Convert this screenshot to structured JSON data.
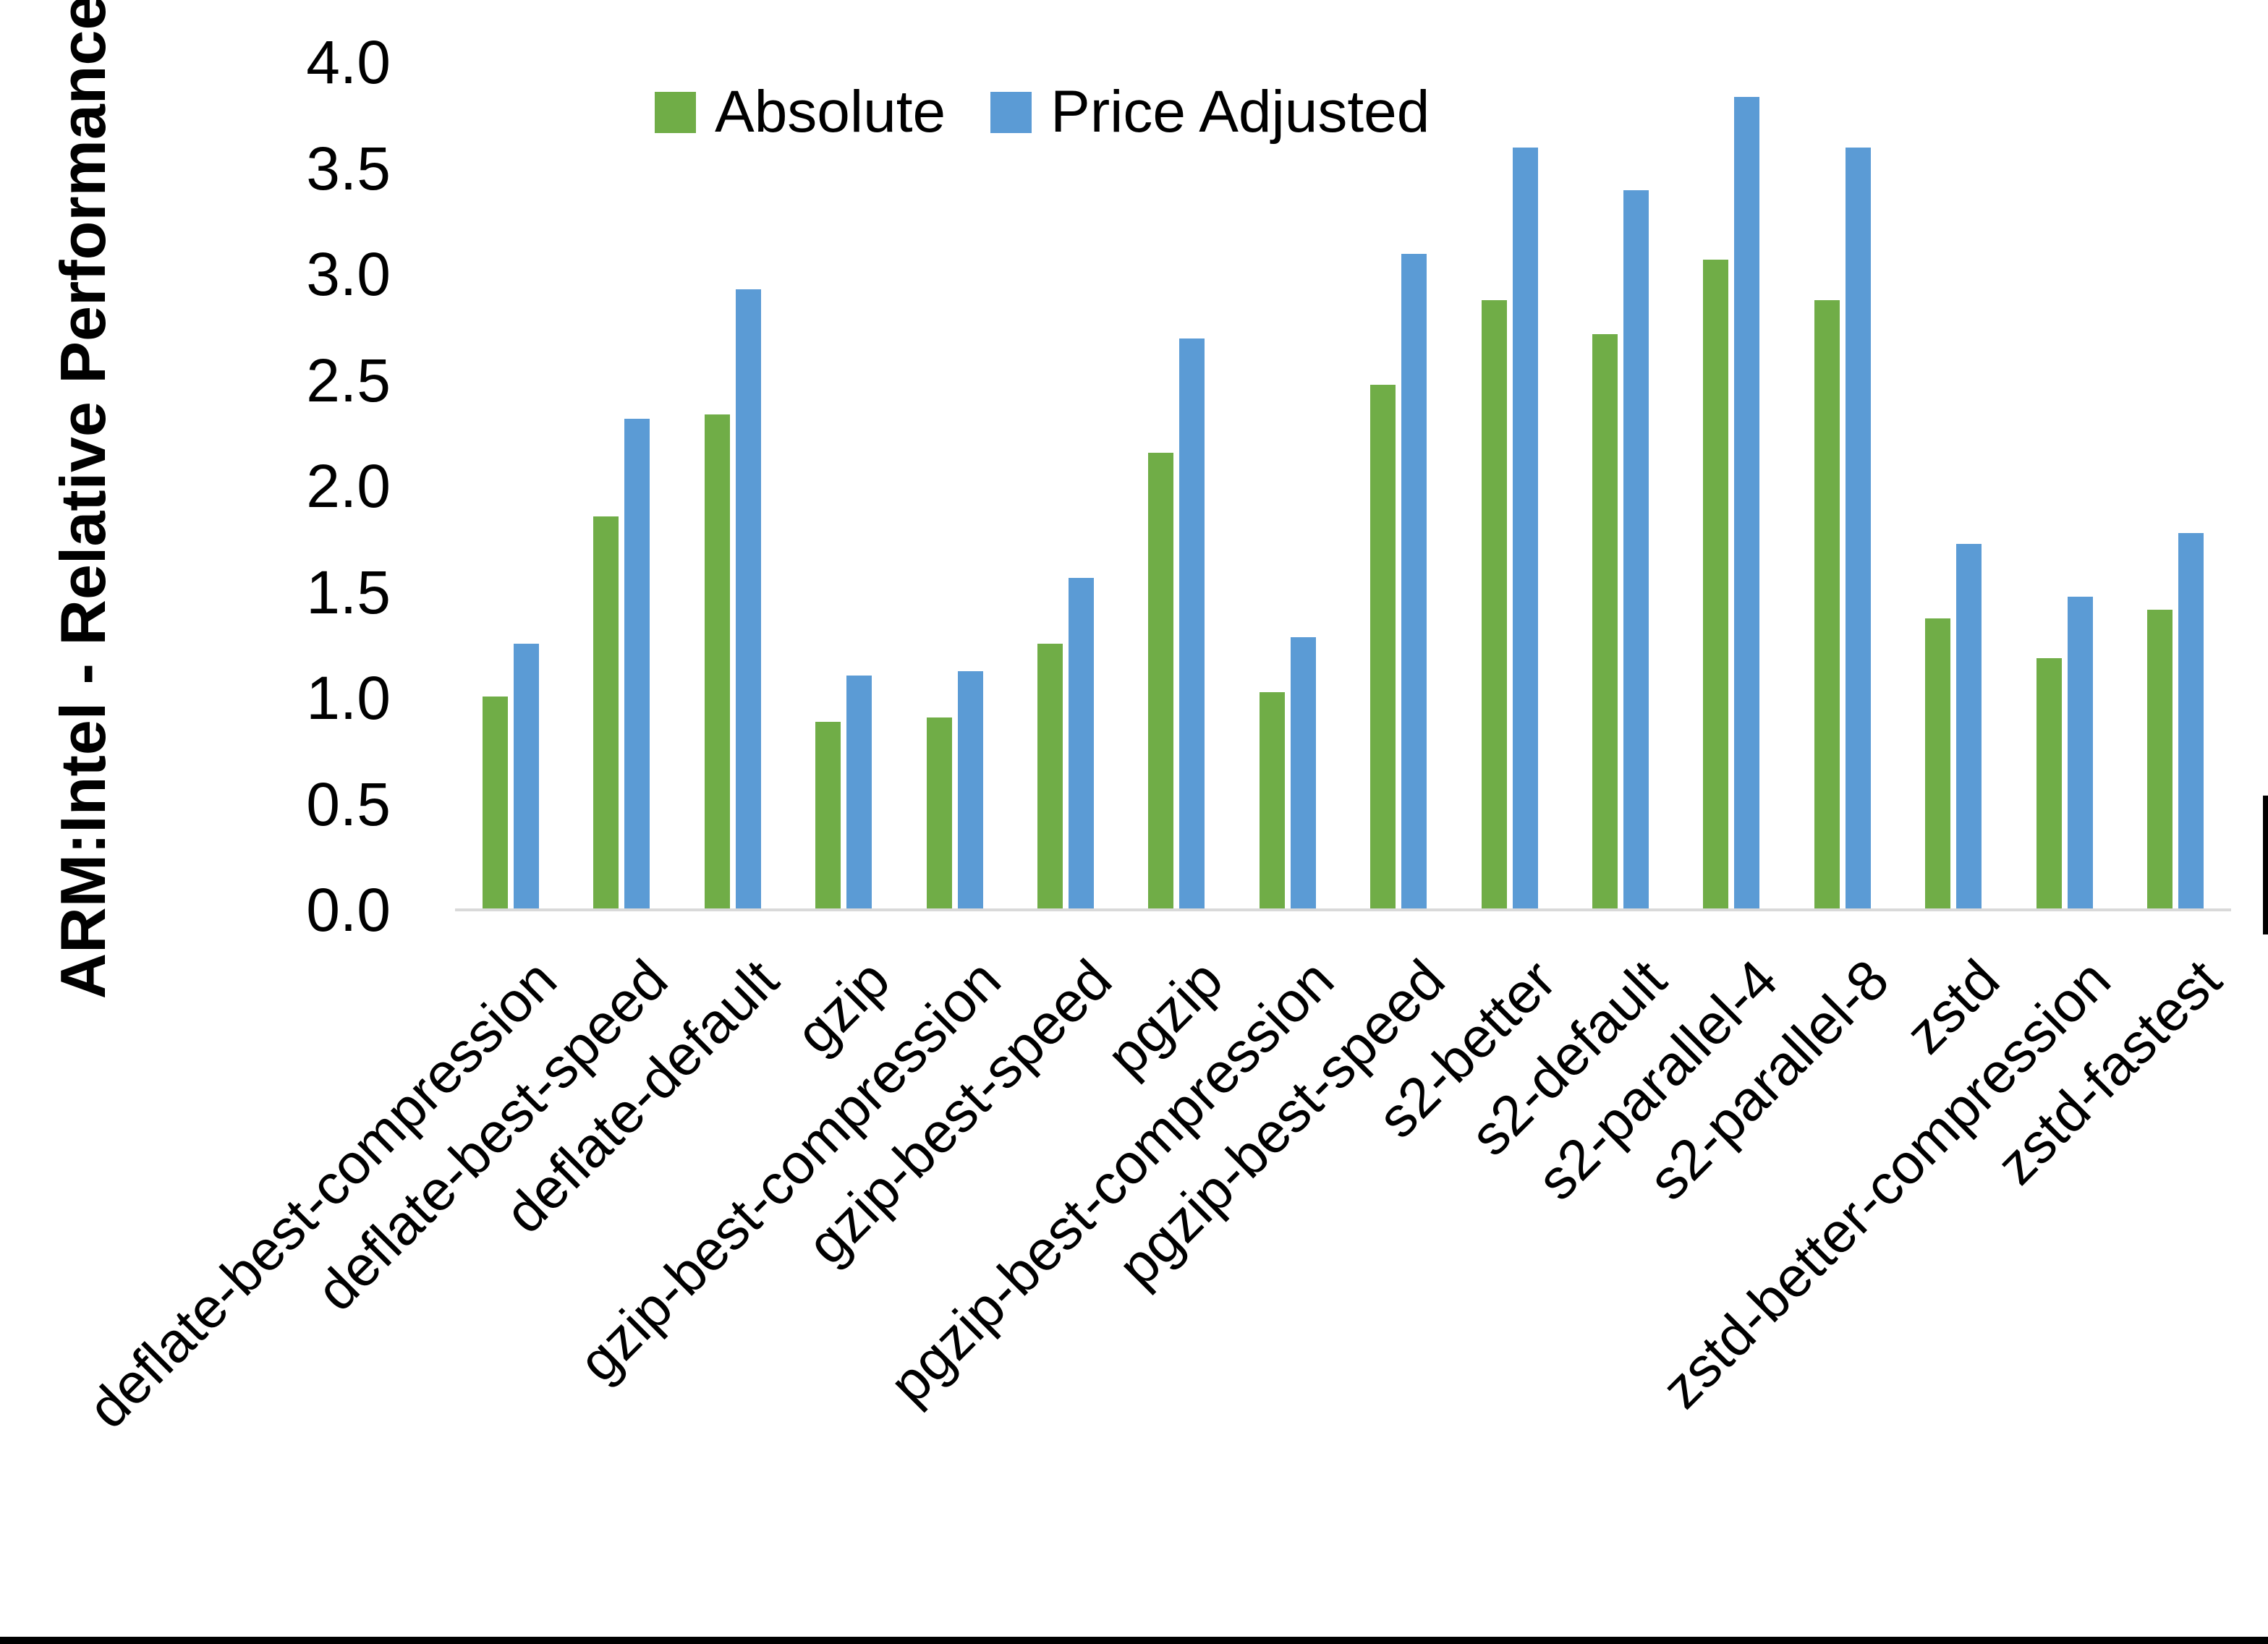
{
  "page": {
    "background": "#ffffff",
    "border_color": "#000000",
    "axis_line_color": "#d9d9d9"
  },
  "chart_data": {
    "type": "bar",
    "title": "",
    "xlabel": "",
    "ylabel": "ARM:Intel - Relative Performance",
    "ylim": [
      0.0,
      4.0
    ],
    "ytick_step": 0.5,
    "yticks": [
      "0.0",
      "0.5",
      "1.0",
      "1.5",
      "2.0",
      "2.5",
      "3.0",
      "3.5",
      "4.0"
    ],
    "grid": false,
    "legend_position": "top-center",
    "categories": [
      "deflate-best-compression",
      "deflate-best-speed",
      "deflate-default",
      "gzip",
      "gzip-best-compression",
      "gzip-best-speed",
      "pgzip",
      "pgzip-best-compression",
      "pgzip-best-speed",
      "s2-better",
      "s2-default",
      "s2-parallel-4",
      "s2-parallel-8",
      "zstd",
      "zstd-better-compression",
      "zstd-fastest"
    ],
    "series": [
      {
        "name": "Absolute",
        "color": "#70AD47",
        "values": [
          1.0,
          1.85,
          2.33,
          0.88,
          0.9,
          1.25,
          2.15,
          1.02,
          2.47,
          2.87,
          2.71,
          3.06,
          2.87,
          1.37,
          1.18,
          1.41
        ]
      },
      {
        "name": "Price Adjusted",
        "color": "#5B9BD5",
        "values": [
          1.25,
          2.31,
          2.92,
          1.1,
          1.12,
          1.56,
          2.69,
          1.28,
          3.09,
          3.59,
          3.39,
          3.83,
          3.59,
          1.72,
          1.47,
          1.77
        ]
      }
    ]
  }
}
